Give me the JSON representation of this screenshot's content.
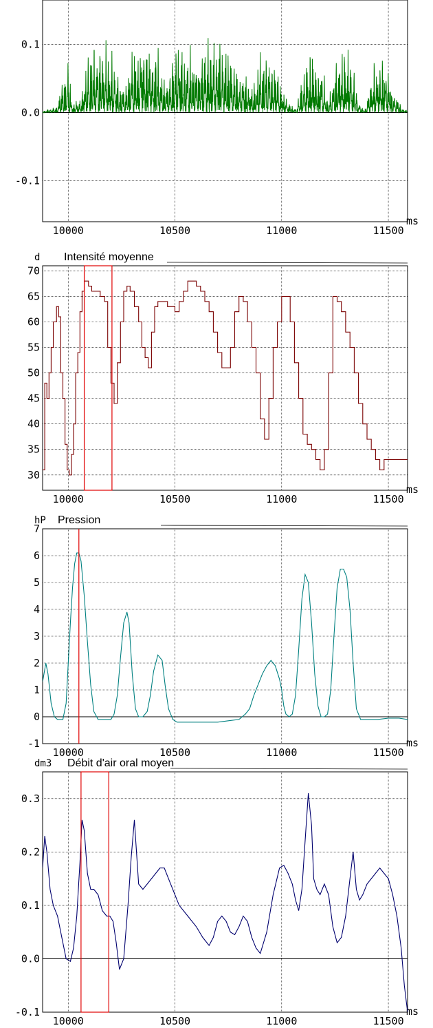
{
  "chart_data": [
    {
      "type": "line",
      "title": "",
      "xlabel": "ms",
      "ylabel": "",
      "xlim": [
        9880,
        11590
      ],
      "ylim": [
        -0.16,
        0.165
      ],
      "x_ticks": [
        {
          "v": 10000,
          "label": "10000"
        },
        {
          "v": 10500,
          "label": "10500"
        },
        {
          "v": 11000,
          "label": "11000"
        },
        {
          "v": 11500,
          "label": "11500"
        }
      ],
      "y_ticks": [
        {
          "v": 0.1,
          "label": "0.1"
        },
        {
          "v": 0.0,
          "label": "0.0"
        },
        {
          "v": -0.1,
          "label": "-0.1"
        }
      ],
      "grid": true,
      "color": "#007a00",
      "waveform": true,
      "envelope": {
        "x": [
          9880,
          9950,
          9970,
          10000,
          10020,
          10060,
          10090,
          10130,
          10170,
          10200,
          10230,
          10260,
          10290,
          10330,
          10380,
          10420,
          10450,
          10480,
          10520,
          10560,
          10600,
          10630,
          10670,
          10710,
          10750,
          10790,
          10830,
          10860,
          10890,
          10930,
          10960,
          10990,
          11030,
          11070,
          11090,
          11110,
          11150,
          11190,
          11220,
          11260,
          11300,
          11330,
          11360,
          11390,
          11420,
          11450,
          11490,
          11520,
          11560,
          11590
        ],
        "pos": [
          0.002,
          0.01,
          0.06,
          0.09,
          0.02,
          0.02,
          0.11,
          0.14,
          0.125,
          0.11,
          0.08,
          0.04,
          0.1,
          0.13,
          0.13,
          0.1,
          0.06,
          0.09,
          0.12,
          0.115,
          0.1,
          0.11,
          0.13,
          0.135,
          0.11,
          0.08,
          0.07,
          0.04,
          0.09,
          0.115,
          0.11,
          0.06,
          0.02,
          0.005,
          0.06,
          0.09,
          0.1,
          0.08,
          0.02,
          0.11,
          0.115,
          0.1,
          0.02,
          0.003,
          0.07,
          0.1,
          0.1,
          0.05,
          0.01,
          0.002
        ],
        "neg": [
          -0.002,
          -0.01,
          -0.04,
          -0.055,
          -0.015,
          -0.02,
          -0.06,
          -0.09,
          -0.085,
          -0.07,
          -0.05,
          -0.03,
          -0.075,
          -0.1,
          -0.1,
          -0.07,
          -0.04,
          -0.07,
          -0.085,
          -0.08,
          -0.07,
          -0.08,
          -0.1,
          -0.105,
          -0.08,
          -0.06,
          -0.05,
          -0.03,
          -0.06,
          -0.08,
          -0.075,
          -0.04,
          -0.015,
          -0.004,
          -0.045,
          -0.065,
          -0.07,
          -0.055,
          -0.015,
          -0.08,
          -0.085,
          -0.07,
          -0.015,
          -0.003,
          -0.05,
          -0.065,
          -0.065,
          -0.03,
          -0.008,
          -0.002
        ]
      }
    },
    {
      "type": "line",
      "title": "Intensité moyenne",
      "unit": "d",
      "xlabel": "ms",
      "xlim": [
        9880,
        11590
      ],
      "ylim": [
        27,
        71
      ],
      "x_ticks": [
        {
          "v": 10000,
          "label": "10000"
        },
        {
          "v": 10500,
          "label": "10500"
        },
        {
          "v": 11000,
          "label": "11000"
        },
        {
          "v": 11500,
          "label": "11500"
        }
      ],
      "y_ticks": [
        {
          "v": 70,
          "label": "70"
        },
        {
          "v": 65,
          "label": "65"
        },
        {
          "v": 60,
          "label": "60"
        },
        {
          "v": 55,
          "label": "55"
        },
        {
          "v": 50,
          "label": "50"
        },
        {
          "v": 45,
          "label": "45"
        },
        {
          "v": 40,
          "label": "40"
        },
        {
          "v": 35,
          "label": "35"
        },
        {
          "v": 30,
          "label": "30"
        }
      ],
      "grid": true,
      "color": "#7a0000",
      "step": true,
      "highlight": {
        "x0": 10075,
        "x1": 10205,
        "color": "#e00000"
      },
      "x": [
        9880,
        9890,
        9900,
        9910,
        9920,
        9930,
        9945,
        9955,
        9965,
        9975,
        9985,
        9995,
        10005,
        10015,
        10025,
        10035,
        10045,
        10055,
        10065,
        10075,
        10085,
        10095,
        10110,
        10130,
        10150,
        10170,
        10185,
        10200,
        10215,
        10230,
        10245,
        10260,
        10275,
        10290,
        10310,
        10330,
        10345,
        10360,
        10375,
        10390,
        10405,
        10420,
        10435,
        10450,
        10465,
        10480,
        10500,
        10520,
        10540,
        10560,
        10580,
        10600,
        10620,
        10640,
        10660,
        10680,
        10700,
        10720,
        10740,
        10760,
        10780,
        10800,
        10820,
        10840,
        10860,
        10880,
        10900,
        10920,
        10940,
        10960,
        10980,
        11000,
        11020,
        11040,
        11060,
        11080,
        11100,
        11120,
        11140,
        11160,
        11180,
        11200,
        11220,
        11240,
        11260,
        11280,
        11300,
        11320,
        11340,
        11360,
        11380,
        11400,
        11420,
        11440,
        11460,
        11480,
        11500,
        11520,
        11540,
        11560,
        11580,
        11590
      ],
      "values": [
        31,
        48,
        45,
        50,
        55,
        60,
        63,
        61,
        50,
        45,
        36,
        31,
        30,
        34,
        40,
        50,
        54,
        62,
        66,
        68,
        68,
        67,
        66,
        66,
        65,
        64,
        55,
        48,
        44,
        52,
        60,
        66,
        67,
        66,
        63,
        60,
        55,
        53,
        51,
        58,
        63,
        64,
        64,
        64,
        63,
        63,
        62,
        64,
        66,
        68,
        68,
        67,
        66,
        64,
        62,
        58,
        54,
        51,
        51,
        55,
        62,
        65,
        64,
        60,
        55,
        50,
        41,
        37,
        45,
        55,
        60,
        65,
        65,
        60,
        52,
        45,
        38,
        36,
        35,
        33,
        31,
        35,
        50,
        65,
        64,
        62,
        58,
        55,
        50,
        44,
        40,
        37,
        35,
        33,
        31,
        33,
        33,
        33,
        33,
        33,
        33,
        33
      ]
    },
    {
      "type": "line",
      "title": "Pression",
      "unit": "hP",
      "xlabel": "ms",
      "xlim": [
        9880,
        11590
      ],
      "ylim": [
        -1,
        7
      ],
      "x_ticks": [
        {
          "v": 10000,
          "label": "10000"
        },
        {
          "v": 10500,
          "label": "10500"
        },
        {
          "v": 11000,
          "label": "11000"
        },
        {
          "v": 11500,
          "label": "11500"
        }
      ],
      "y_ticks": [
        {
          "v": 7,
          "label": "7"
        },
        {
          "v": 6,
          "label": "6"
        },
        {
          "v": 5,
          "label": "5"
        },
        {
          "v": 4,
          "label": "4"
        },
        {
          "v": 3,
          "label": "3"
        },
        {
          "v": 2,
          "label": "2"
        },
        {
          "v": 1,
          "label": "1"
        },
        {
          "v": 0,
          "label": "0"
        },
        {
          "v": -1,
          "label": "-1"
        }
      ],
      "grid": true,
      "color": "#008080",
      "cursor": {
        "x": 10050,
        "color": "#e00000"
      },
      "x": [
        9880,
        9895,
        9905,
        9920,
        9935,
        9950,
        9960,
        9975,
        9990,
        10000,
        10010,
        10020,
        10030,
        10040,
        10050,
        10060,
        10075,
        10090,
        10105,
        10120,
        10140,
        10160,
        10180,
        10200,
        10215,
        10230,
        10245,
        10260,
        10275,
        10285,
        10300,
        10315,
        10330,
        10350,
        10370,
        10385,
        10400,
        10420,
        10440,
        10455,
        10470,
        10490,
        10510,
        10530,
        10550,
        10600,
        10650,
        10700,
        10750,
        10800,
        10830,
        10850,
        10870,
        10890,
        10910,
        10930,
        10950,
        10970,
        10990,
        11000,
        11010,
        11020,
        11035,
        11050,
        11065,
        11080,
        11095,
        11110,
        11125,
        11140,
        11155,
        11170,
        11185,
        11200,
        11215,
        11230,
        11245,
        11260,
        11275,
        11290,
        11305,
        11320,
        11335,
        11350,
        11370,
        11400,
        11450,
        11500,
        11550,
        11590
      ],
      "values": [
        1.3,
        2.0,
        1.6,
        0.5,
        0.0,
        -0.1,
        -0.1,
        -0.1,
        0.5,
        2.0,
        3.5,
        4.8,
        5.7,
        6.1,
        6.1,
        5.8,
        4.5,
        2.8,
        1.2,
        0.2,
        -0.1,
        -0.1,
        -0.1,
        -0.1,
        0.1,
        0.8,
        2.2,
        3.5,
        3.9,
        3.5,
        1.6,
        0.3,
        0.0,
        0.0,
        0.2,
        0.8,
        1.7,
        2.3,
        2.1,
        1.1,
        0.3,
        -0.1,
        -0.2,
        -0.2,
        -0.2,
        -0.2,
        -0.2,
        -0.2,
        -0.15,
        -0.1,
        0.1,
        0.3,
        0.8,
        1.2,
        1.6,
        1.9,
        2.1,
        1.9,
        1.4,
        1.0,
        0.4,
        0.1,
        0.0,
        0.1,
        0.8,
        2.5,
        4.4,
        5.3,
        5.0,
        3.5,
        1.6,
        0.4,
        0.0,
        0.0,
        0.1,
        1.0,
        3.0,
        4.8,
        5.5,
        5.5,
        5.2,
        4.0,
        2.0,
        0.3,
        -0.1,
        -0.1,
        -0.1,
        -0.05,
        -0.05,
        -0.1
      ]
    },
    {
      "type": "line",
      "title": "Débit d'air oral moyen",
      "unit": "dm3",
      "xlabel": "ms",
      "xlim": [
        9880,
        11590
      ],
      "ylim": [
        -0.1,
        0.35
      ],
      "x_ticks": [
        {
          "v": 10000,
          "label": "10000"
        },
        {
          "v": 10500,
          "label": "10500"
        },
        {
          "v": 11000,
          "label": "11000"
        },
        {
          "v": 11500,
          "label": "11500"
        }
      ],
      "y_ticks": [
        {
          "v": 0.3,
          "label": "0.3"
        },
        {
          "v": 0.2,
          "label": "0.2"
        },
        {
          "v": 0.1,
          "label": "0.1"
        },
        {
          "v": 0.0,
          "label": "0.0"
        },
        {
          "v": -0.1,
          "label": "-0.1"
        }
      ],
      "grid": true,
      "color": "#00006e",
      "highlight": {
        "x0": 10060,
        "x1": 10190,
        "color": "#e00000"
      },
      "x": [
        9880,
        9890,
        9900,
        9915,
        9930,
        9950,
        9970,
        9990,
        10010,
        10025,
        10040,
        10055,
        10065,
        10075,
        10090,
        10105,
        10120,
        10140,
        10160,
        10180,
        10195,
        10210,
        10225,
        10240,
        10260,
        10280,
        10295,
        10310,
        10330,
        10350,
        10370,
        10390,
        10410,
        10430,
        10450,
        10480,
        10520,
        10560,
        10600,
        10630,
        10660,
        10680,
        10700,
        10720,
        10740,
        10760,
        10780,
        10800,
        10820,
        10840,
        10860,
        10880,
        10900,
        10930,
        10960,
        10990,
        11010,
        11030,
        11050,
        11065,
        11080,
        11095,
        11110,
        11125,
        11140,
        11150,
        11165,
        11180,
        11200,
        11220,
        11240,
        11260,
        11280,
        11300,
        11320,
        11335,
        11350,
        11365,
        11380,
        11400,
        11420,
        11440,
        11460,
        11480,
        11500,
        11520,
        11540,
        11560,
        11575,
        11590
      ],
      "values": [
        0.17,
        0.23,
        0.2,
        0.13,
        0.1,
        0.08,
        0.04,
        0.0,
        -0.005,
        0.02,
        0.08,
        0.18,
        0.26,
        0.24,
        0.16,
        0.13,
        0.13,
        0.12,
        0.09,
        0.08,
        0.08,
        0.07,
        0.03,
        -0.02,
        0.0,
        0.1,
        0.19,
        0.26,
        0.14,
        0.13,
        0.14,
        0.15,
        0.16,
        0.17,
        0.17,
        0.14,
        0.1,
        0.08,
        0.06,
        0.04,
        0.025,
        0.04,
        0.07,
        0.08,
        0.07,
        0.05,
        0.045,
        0.06,
        0.08,
        0.07,
        0.04,
        0.02,
        0.01,
        0.05,
        0.12,
        0.17,
        0.175,
        0.16,
        0.14,
        0.11,
        0.09,
        0.13,
        0.22,
        0.31,
        0.25,
        0.15,
        0.13,
        0.12,
        0.14,
        0.12,
        0.06,
        0.03,
        0.04,
        0.08,
        0.15,
        0.2,
        0.13,
        0.11,
        0.12,
        0.14,
        0.15,
        0.16,
        0.17,
        0.16,
        0.15,
        0.12,
        0.08,
        0.02,
        -0.05,
        -0.1
      ]
    }
  ]
}
